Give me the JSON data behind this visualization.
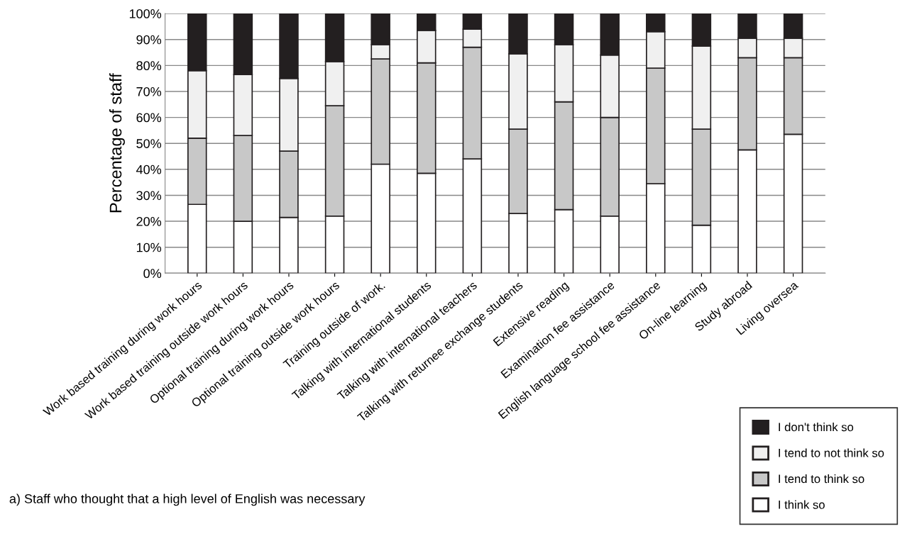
{
  "chart_data": {
    "type": "bar",
    "stacked": true,
    "ylabel": "Percentage of staff",
    "categories": [
      "Work based training during work hours",
      "Work based training outside work hours",
      "Optional training during work hours",
      "Optional training outside work hours",
      "Training outside of work.",
      "Talking with international students",
      "Talking with international teachers",
      "Talking with returnee exchange students",
      "Extensive reading",
      "Examination fee assistance",
      "English language school fee assistance",
      "On-line learning",
      "Study abroad",
      "Living oversea"
    ],
    "series": [
      {
        "name": "I think so",
        "color": "#ffffff",
        "values": [
          26.5,
          20,
          21.5,
          22,
          42,
          38.5,
          44,
          23,
          24.5,
          22,
          34.5,
          18.5,
          47.5,
          53.5
        ]
      },
      {
        "name": "I tend to think so",
        "color": "#c8c8c8",
        "values": [
          25.5,
          33,
          25.5,
          42.5,
          40.5,
          42.5,
          43,
          32.5,
          41.5,
          38,
          44.5,
          37,
          35.5,
          29.5
        ]
      },
      {
        "name": "I tend to not think so",
        "color": "#f0f0f0",
        "values": [
          26,
          23.5,
          28,
          17,
          5.5,
          12.5,
          7,
          29,
          22,
          24,
          14,
          32,
          7.5,
          7.5
        ]
      },
      {
        "name": "I don't think so",
        "color": "#231f20",
        "values": [
          22,
          23.5,
          25,
          18.5,
          12,
          6.5,
          6,
          15.5,
          12,
          16,
          7,
          12.5,
          9.5,
          9.5
        ]
      }
    ],
    "ylim": [
      0,
      100
    ],
    "yticks": [
      {
        "value": 0,
        "label": "0%"
      },
      {
        "value": 10,
        "label": "10%"
      },
      {
        "value": 20,
        "label": "20%"
      },
      {
        "value": 30,
        "label": "30%"
      },
      {
        "value": 40,
        "label": "40%"
      },
      {
        "value": 50,
        "label": "50%"
      },
      {
        "value": 60,
        "label": "60%"
      },
      {
        "value": 70,
        "label": "70%"
      },
      {
        "value": 80,
        "label": "80%"
      },
      {
        "value": 90,
        "label": "90%"
      },
      {
        "value": 100,
        "label": "100%"
      }
    ],
    "grid": "y",
    "legend": "bottom right",
    "annotations": [
      "a) Staff who thought that a high level of English was necessary"
    ]
  }
}
